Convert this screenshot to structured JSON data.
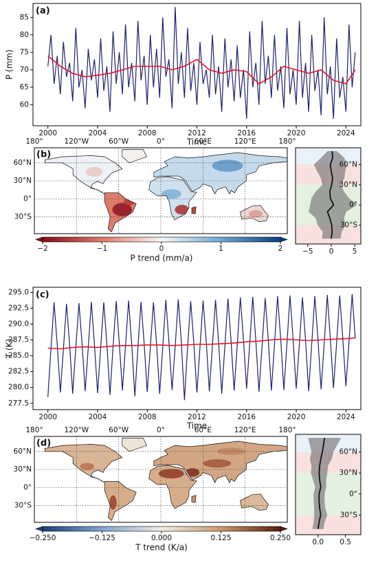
{
  "chart_data": [
    {
      "type": "line",
      "label": "(a)",
      "xlabel": "Time",
      "ylabel": "P (mm)",
      "xlim": [
        1998.8,
        2025.2
      ],
      "xticks": [
        2000,
        2004,
        2008,
        2012,
        2016,
        2020,
        2024
      ],
      "ylim": [
        54,
        89
      ],
      "yticks": [
        60,
        65,
        70,
        75,
        80,
        85
      ],
      "series": [
        {
          "color": "#1b1f6e",
          "x": [
            2000,
            2000.25,
            2000.5,
            2000.75,
            2001,
            2001.25,
            2001.5,
            2001.75,
            2002,
            2002.25,
            2002.5,
            2002.75,
            2003,
            2003.25,
            2003.5,
            2003.75,
            2004,
            2004.25,
            2004.5,
            2004.75,
            2005,
            2005.25,
            2005.5,
            2005.75,
            2006,
            2006.25,
            2006.5,
            2006.75,
            2007,
            2007.25,
            2007.5,
            2007.75,
            2008,
            2008.25,
            2008.5,
            2008.75,
            2009,
            2009.25,
            2009.5,
            2009.75,
            2010,
            2010.25,
            2010.5,
            2010.75,
            2011,
            2011.25,
            2011.5,
            2011.75,
            2012,
            2012.25,
            2012.5,
            2012.75,
            2013,
            2013.25,
            2013.5,
            2013.75,
            2014,
            2014.25,
            2014.5,
            2014.75,
            2015,
            2015.25,
            2015.5,
            2015.75,
            2016,
            2016.25,
            2016.5,
            2016.75,
            2017,
            2017.25,
            2017.5,
            2017.75,
            2018,
            2018.25,
            2018.5,
            2018.75,
            2019,
            2019.25,
            2019.5,
            2019.75,
            2020,
            2020.25,
            2020.5,
            2020.75,
            2021,
            2021.25,
            2021.5,
            2021.75,
            2022,
            2022.25,
            2022.5,
            2022.75,
            2023,
            2023.25,
            2023.5,
            2023.75,
            2024,
            2024.25,
            2024.5,
            2024.75
          ],
          "values": [
            71,
            80,
            66,
            74,
            63,
            78,
            68,
            72,
            61,
            82,
            65,
            70,
            59,
            76,
            67,
            73,
            62,
            79,
            64,
            71,
            58,
            81,
            66,
            75,
            63,
            83,
            65,
            72,
            61,
            84,
            67,
            74,
            60,
            80,
            65,
            76,
            62,
            85,
            68,
            73,
            59,
            88,
            66,
            75,
            62,
            82,
            64,
            72,
            60,
            78,
            66,
            70,
            62,
            80,
            63,
            71,
            58,
            79,
            65,
            73,
            61,
            77,
            62,
            70,
            56,
            81,
            65,
            72,
            60,
            84,
            66,
            74,
            62,
            80,
            64,
            71,
            59,
            82,
            63,
            70,
            60,
            84,
            62,
            72,
            58,
            80,
            64,
            70,
            57,
            85,
            63,
            71,
            56,
            79,
            62,
            68,
            58,
            83,
            65,
            75
          ]
        },
        {
          "color": "#e8141e",
          "x": [
            2000,
            2001,
            2002,
            2003,
            2004,
            2005,
            2006,
            2007,
            2008,
            2009,
            2010,
            2011,
            2012,
            2013,
            2014,
            2015,
            2016,
            2017,
            2018,
            2019,
            2020,
            2021,
            2022,
            2023,
            2024,
            2024.75
          ],
          "values": [
            74,
            71,
            69,
            68,
            68.5,
            69,
            70,
            71,
            71,
            71,
            70,
            71,
            73,
            70,
            69,
            70,
            69.5,
            66,
            68,
            71,
            70,
            69,
            70,
            67,
            66,
            70
          ]
        }
      ]
    },
    {
      "type": "map",
      "label": "(b)",
      "lonlim": [
        -180,
        180
      ],
      "latlim": [
        -58,
        85
      ],
      "lon_ticks": [
        {
          "value": -180,
          "label": "180°"
        },
        {
          "value": -120,
          "label": "120°W"
        },
        {
          "value": -60,
          "label": "60°W"
        },
        {
          "value": 0,
          "label": "0°"
        },
        {
          "value": 60,
          "label": "60°E"
        },
        {
          "value": 120,
          "label": "120°E"
        },
        {
          "value": 180,
          "label": "180°"
        }
      ],
      "lat_ticks": [
        {
          "value": 60,
          "label": "60°N"
        },
        {
          "value": 30,
          "label": "30°N"
        },
        {
          "value": 0,
          "label": "0°"
        },
        {
          "value": -30,
          "label": "30°S"
        }
      ],
      "colorbar_label": "P trend (mm/a)",
      "clim": [
        -2,
        2
      ],
      "cticks": [
        {
          "value": -2,
          "label": "−2"
        },
        {
          "value": -1,
          "label": "−1"
        },
        0,
        1,
        2
      ],
      "colors": [
        "#8b0a1a",
        "#e07a6a",
        "#f7f7f7",
        "#6fa8d0",
        "#0d3f7a"
      ]
    },
    {
      "type": "profile",
      "xlim": [
        -7.6,
        6.3
      ],
      "xticks": [
        {
          "value": -5,
          "label": "−5"
        },
        0,
        5
      ],
      "ylim": [
        -58,
        85
      ],
      "yticks": [
        {
          "value": 60,
          "label": "60°N"
        },
        {
          "value": 30,
          "label": "30°N"
        },
        {
          "value": 0,
          "label": "0°"
        },
        {
          "value": -30,
          "label": "30°S"
        }
      ],
      "lat": [
        80,
        70,
        60,
        50,
        40,
        30,
        20,
        10,
        0,
        -10,
        -20,
        -30,
        -40,
        -50
      ],
      "values": [
        0.2,
        0.3,
        -0.2,
        0,
        0.3,
        0.1,
        -0.3,
        -0.2,
        0.5,
        -0.8,
        -0.3,
        0.1,
        0.2,
        0
      ],
      "spread": [
        1,
        2.5,
        3.5,
        3,
        2.5,
        2,
        3,
        4,
        5,
        4,
        3,
        3,
        2,
        2
      ]
    },
    {
      "type": "line",
      "label": "(c)",
      "xlabel": "Time",
      "ylabel": "T (K)",
      "xlim": [
        1998.8,
        2025.2
      ],
      "xticks": [
        2000,
        2004,
        2008,
        2012,
        2016,
        2020,
        2024
      ],
      "ylim": [
        276.5,
        295.8
      ],
      "yticks": [
        277.5,
        {
          "value": 280,
          "label": "280.0"
        },
        282.5,
        {
          "value": 285,
          "label": "285.0"
        },
        287.5,
        {
          "value": 290,
          "label": "290.0"
        },
        292.5,
        {
          "value": 295,
          "label": "295.0"
        }
      ],
      "series": [
        {
          "color": "#1b1f6e",
          "x": [
            2000,
            2000.25,
            2000.5,
            2000.75,
            2001,
            2001.25,
            2001.5,
            2001.75,
            2002,
            2002.25,
            2002.5,
            2002.75,
            2003,
            2003.25,
            2003.5,
            2003.75,
            2004,
            2004.25,
            2004.5,
            2004.75,
            2005,
            2005.25,
            2005.5,
            2005.75,
            2006,
            2006.25,
            2006.5,
            2006.75,
            2007,
            2007.25,
            2007.5,
            2007.75,
            2008,
            2008.25,
            2008.5,
            2008.75,
            2009,
            2009.25,
            2009.5,
            2009.75,
            2010,
            2010.25,
            2010.5,
            2010.75,
            2011,
            2011.25,
            2011.5,
            2011.75,
            2012,
            2012.25,
            2012.5,
            2012.75,
            2013,
            2013.25,
            2013.5,
            2013.75,
            2014,
            2014.25,
            2014.5,
            2014.75,
            2015,
            2015.25,
            2015.5,
            2015.75,
            2016,
            2016.25,
            2016.5,
            2016.75,
            2017,
            2017.25,
            2017.5,
            2017.75,
            2018,
            2018.25,
            2018.5,
            2018.75,
            2019,
            2019.25,
            2019.5,
            2019.75,
            2020,
            2020.25,
            2020.5,
            2020.75,
            2021,
            2021.25,
            2021.5,
            2021.75,
            2022,
            2022.25,
            2022.5,
            2022.75,
            2023,
            2023.25,
            2023.5,
            2023.75,
            2024,
            2024.25,
            2024.5,
            2024.75
          ],
          "values": [
            278.5,
            286.2,
            293.4,
            286.8,
            279.2,
            286.1,
            293.2,
            286.7,
            279.0,
            286.3,
            293.3,
            286.9,
            279.4,
            286.2,
            293.5,
            286.8,
            279.1,
            286.3,
            293.4,
            286.9,
            278.8,
            286.4,
            293.6,
            287.0,
            279.5,
            286.5,
            293.7,
            286.9,
            278.6,
            286.4,
            293.5,
            287.0,
            279.3,
            286.3,
            293.4,
            286.9,
            279.0,
            286.4,
            293.8,
            287.1,
            279.6,
            286.5,
            293.9,
            287.0,
            278.0,
            286.3,
            293.6,
            287.0,
            279.2,
            286.4,
            293.7,
            287.2,
            279.4,
            286.6,
            293.8,
            287.1,
            279.0,
            286.5,
            294.0,
            287.3,
            279.5,
            286.7,
            294.2,
            287.4,
            279.8,
            286.8,
            294.3,
            287.3,
            279.3,
            286.7,
            294.1,
            287.4,
            279.5,
            286.8,
            294.4,
            287.5,
            279.6,
            286.9,
            294.5,
            287.5,
            279.8,
            286.8,
            294.2,
            287.4,
            279.4,
            286.9,
            294.4,
            287.5,
            279.7,
            286.9,
            294.6,
            287.6,
            279.9,
            287.0,
            294.5,
            287.7,
            280.2,
            287.1,
            294.7,
            287.8
          ]
        },
        {
          "color": "#e8141e",
          "x": [
            2000,
            2001,
            2002,
            2003,
            2004,
            2005,
            2006,
            2007,
            2008,
            2009,
            2010,
            2011,
            2012,
            2013,
            2014,
            2015,
            2016,
            2017,
            2018,
            2019,
            2020,
            2021,
            2022,
            2023,
            2024,
            2024.75
          ],
          "values": [
            286.2,
            286.1,
            286.3,
            286.4,
            286.3,
            286.5,
            286.6,
            286.6,
            286.7,
            286.7,
            286.6,
            286.7,
            286.8,
            286.8,
            286.9,
            287.0,
            287.2,
            287.3,
            287.5,
            287.6,
            287.5,
            287.4,
            287.5,
            287.6,
            287.7,
            287.8
          ]
        }
      ]
    },
    {
      "type": "map",
      "label": "(d)",
      "lonlim": [
        -180,
        180
      ],
      "latlim": [
        -58,
        85
      ],
      "lon_ticks": [
        {
          "value": -180,
          "label": "180°"
        },
        {
          "value": -120,
          "label": "120°W"
        },
        {
          "value": -60,
          "label": "60°W"
        },
        {
          "value": 0,
          "label": "0°"
        },
        {
          "value": 60,
          "label": "60°E"
        },
        {
          "value": 120,
          "label": "120°E"
        },
        {
          "value": 180,
          "label": "180°"
        }
      ],
      "lat_ticks": [
        {
          "value": 60,
          "label": "60°N"
        },
        {
          "value": 30,
          "label": "30°N"
        },
        {
          "value": 0,
          "label": "0°"
        },
        {
          "value": -30,
          "label": "30°S"
        }
      ],
      "colorbar_label": "T trend (K/a)",
      "clim": [
        -0.25,
        0.25
      ],
      "cticks": [
        {
          "value": -0.25,
          "label": "−0.250"
        },
        {
          "value": -0.125,
          "label": "−0.125"
        },
        {
          "value": 0,
          "label": "0.000"
        },
        {
          "value": 0.125,
          "label": "0.125"
        },
        {
          "value": 0.25,
          "label": "0.250"
        }
      ],
      "colors": [
        "#1d3f7a",
        "#7fa6cc",
        "#f2ede4",
        "#c79a6e",
        "#5a1e10"
      ]
    },
    {
      "type": "profile",
      "xlim": [
        -0.41,
        0.78
      ],
      "xticks": [
        {
          "value": 0,
          "label": "0.0"
        },
        0.5
      ],
      "ylim": [
        -58,
        85
      ],
      "yticks": [
        {
          "value": 60,
          "label": "60°N"
        },
        {
          "value": 30,
          "label": "30°N"
        },
        {
          "value": 0,
          "label": "0°"
        },
        {
          "value": -30,
          "label": "30°S"
        }
      ],
      "lat": [
        80,
        70,
        60,
        50,
        40,
        30,
        20,
        10,
        0,
        -10,
        -20,
        -30,
        -40,
        -50
      ],
      "values": [
        0.12,
        0.1,
        0.08,
        0.05,
        0.03,
        0.02,
        0.03,
        0.05,
        0.02,
        0.02,
        0.03,
        0.05,
        0.02,
        0
      ],
      "spread": [
        0.3,
        0.25,
        0.2,
        0.2,
        0.15,
        0.15,
        0.12,
        0.1,
        0.1,
        0.1,
        0.1,
        0.12,
        0.1,
        0.1
      ]
    }
  ]
}
